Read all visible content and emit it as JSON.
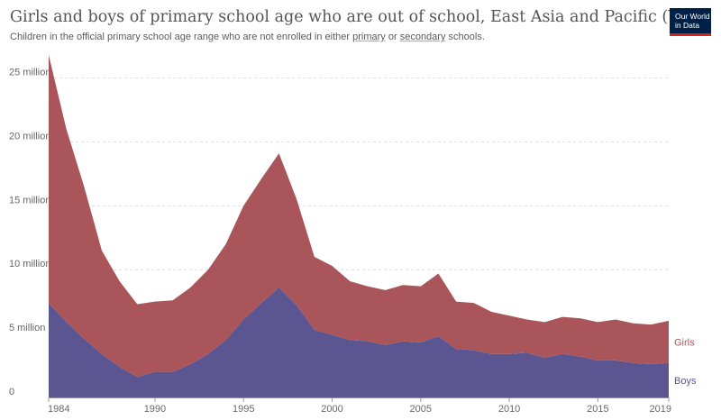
{
  "header": {
    "title": "Girls and boys of primary school age who are out of school, East Asia and Pacific (WB)",
    "subtitle_prefix": "Children in the official primary school age range who are not enrolled in either ",
    "subtitle_link1": "primary",
    "subtitle_mid": " or ",
    "subtitle_link2": "secondary",
    "subtitle_suffix": " schools."
  },
  "logo": {
    "line1": "Our World",
    "line2": "in Data",
    "bg_color": "#002147",
    "accent_color": "#ce261e"
  },
  "chart_data": {
    "type": "area",
    "stacked": true,
    "x": [
      1984,
      1985,
      1986,
      1987,
      1988,
      1989,
      1990,
      1991,
      1992,
      1993,
      1994,
      1995,
      1996,
      1997,
      1998,
      1999,
      2000,
      2001,
      2002,
      2003,
      2004,
      2005,
      2006,
      2007,
      2008,
      2009,
      2010,
      2011,
      2012,
      2013,
      2014,
      2015,
      2016,
      2017,
      2018,
      2019
    ],
    "series": [
      {
        "name": "Boys",
        "color": "#5b5591",
        "values": [
          7.4,
          5.9,
          4.6,
          3.4,
          2.4,
          1.6,
          2.0,
          2.0,
          2.6,
          3.4,
          4.5,
          6.1,
          7.4,
          8.6,
          7.2,
          5.3,
          4.9,
          4.5,
          4.4,
          4.1,
          4.4,
          4.3,
          4.8,
          3.8,
          3.7,
          3.4,
          3.4,
          3.5,
          3.1,
          3.4,
          3.2,
          2.9,
          2.9,
          2.7,
          2.6,
          2.7
        ]
      },
      {
        "name": "Girls",
        "color": "#a9555a",
        "values": [
          19.4,
          15.1,
          11.9,
          8.1,
          6.7,
          5.7,
          5.5,
          5.6,
          6.0,
          6.6,
          7.5,
          8.9,
          9.7,
          10.5,
          8.3,
          5.7,
          5.4,
          4.6,
          4.3,
          4.3,
          4.4,
          4.4,
          4.9,
          3.7,
          3.7,
          3.3,
          3.0,
          2.6,
          2.8,
          2.9,
          3.0,
          3.0,
          3.2,
          3.1,
          3.1,
          3.3
        ]
      }
    ],
    "y_ticks": [
      0,
      5,
      10,
      15,
      20,
      25
    ],
    "y_tick_labels": [
      "0",
      "5 million",
      "10 million",
      "15 million",
      "20 million",
      "25 million"
    ],
    "x_ticks": [
      1984,
      1990,
      1995,
      2000,
      2005,
      2010,
      2015,
      2019
    ],
    "ylim": [
      0,
      26.8
    ],
    "grid": "horizontal-dotted",
    "legend": "right-end-labels"
  }
}
